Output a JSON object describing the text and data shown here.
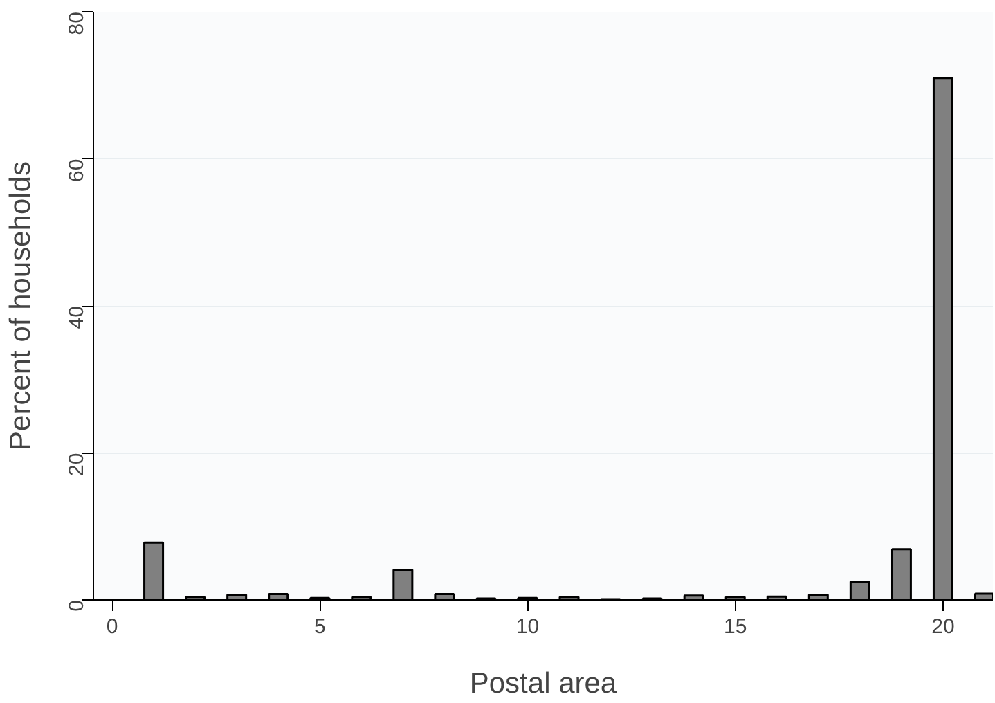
{
  "chart_data": {
    "type": "bar",
    "xlabel": "Postal area",
    "ylabel": "Percent of households",
    "x": [
      1,
      2,
      3,
      4,
      5,
      6,
      7,
      8,
      9,
      10,
      11,
      12,
      13,
      14,
      15,
      16,
      17,
      18,
      19,
      20,
      21
    ],
    "values": [
      7.8,
      0.4,
      0.7,
      0.8,
      0.25,
      0.4,
      4.1,
      0.8,
      0.2,
      0.25,
      0.4,
      0.1,
      0.2,
      0.6,
      0.4,
      0.45,
      0.7,
      2.5,
      6.9,
      71,
      0.85
    ],
    "color": "#808080",
    "xlim": [
      -0.45,
      21.2
    ],
    "xticks": [
      0,
      5,
      10,
      15,
      20
    ],
    "ylim": [
      0,
      80
    ],
    "yticks": [
      0,
      20,
      40,
      60,
      80
    ],
    "grid": "y"
  }
}
